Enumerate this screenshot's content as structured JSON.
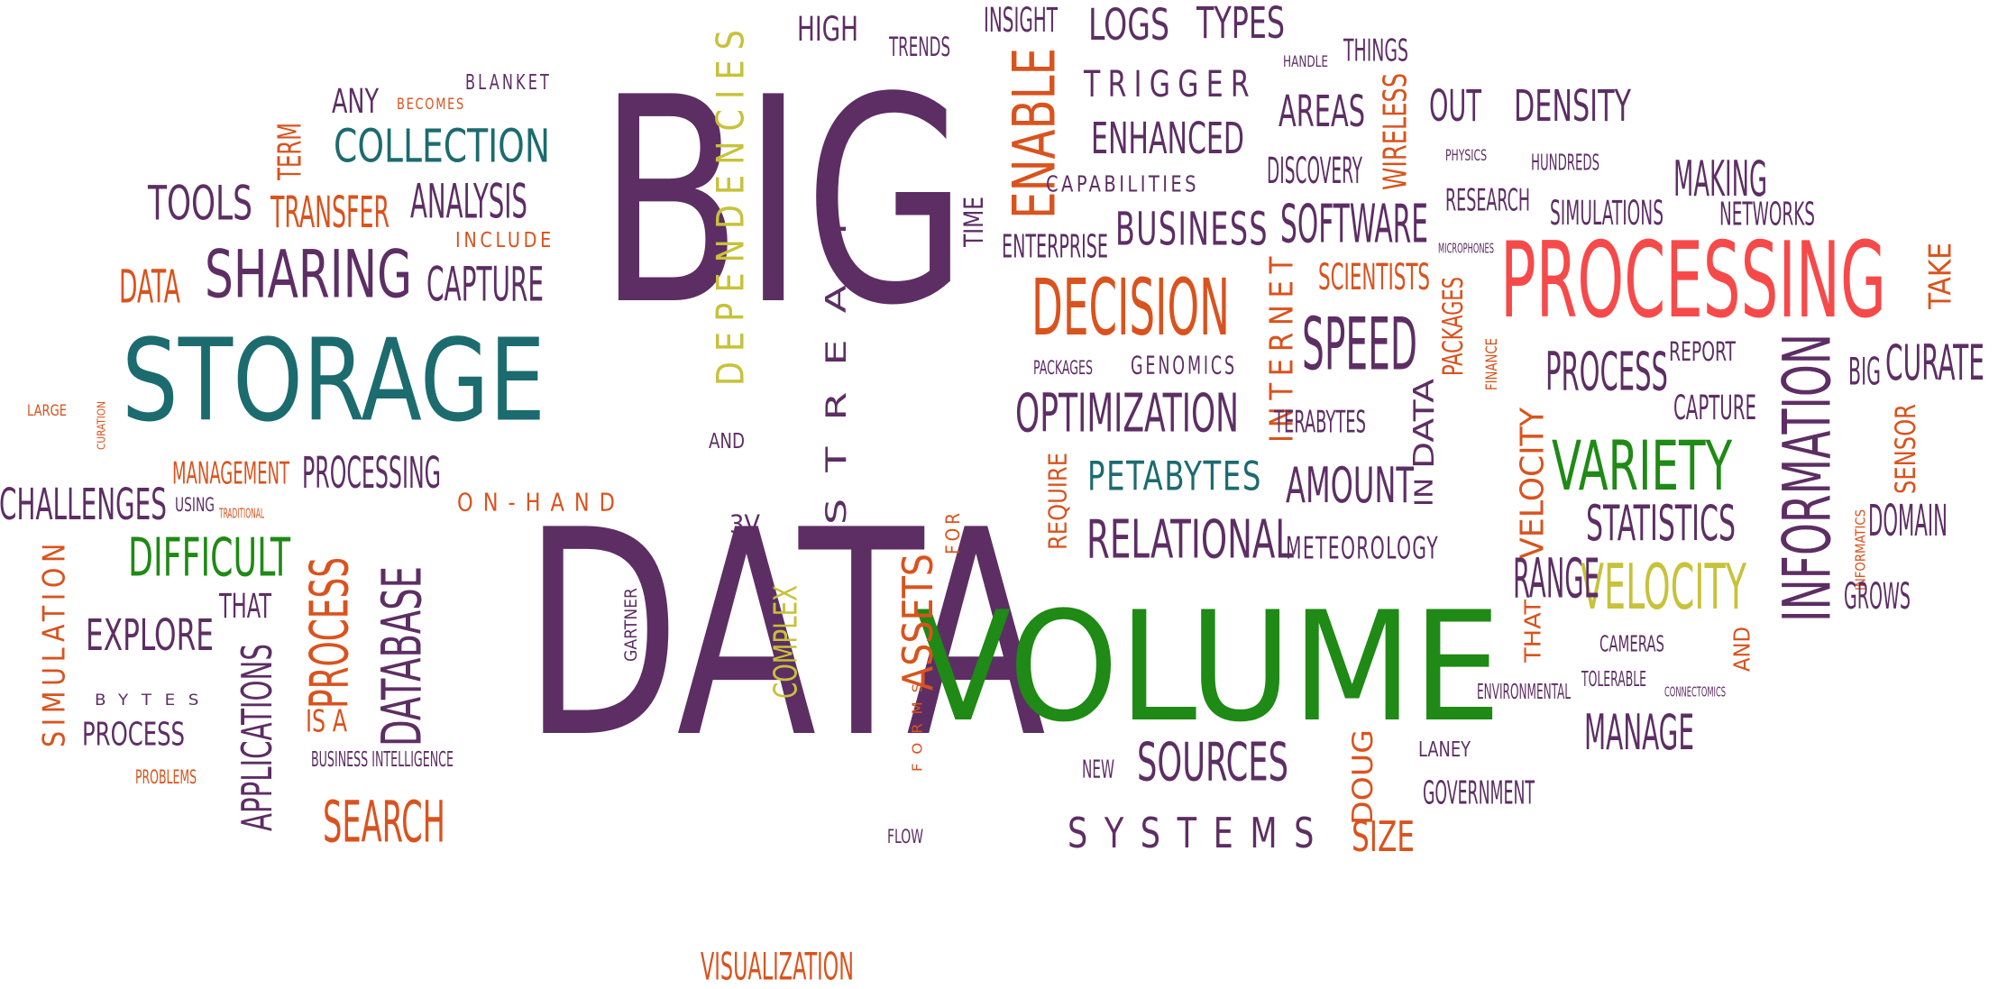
{
  "colors": {
    "purple": "#5d2e64",
    "teal": "#1c6b6f",
    "orange": "#d9531e",
    "red": "#f64a4a",
    "green": "#1f8a15",
    "olive": "#c7c23a",
    "background": "#ffffff"
  },
  "words": [
    {
      "text": "BIG",
      "color": "purple"
    },
    {
      "text": "DATA",
      "color": "purple"
    },
    {
      "text": "VOLUME",
      "color": "green"
    },
    {
      "text": "PROCESSING",
      "color": "red"
    },
    {
      "text": "STORAGE",
      "color": "teal"
    },
    {
      "text": "DECISION",
      "color": "orange"
    },
    {
      "text": "INFORMATION",
      "color": "purple"
    },
    {
      "text": "SHARING",
      "color": "purple"
    },
    {
      "text": "SPEED",
      "color": "purple"
    },
    {
      "text": "VARIETY",
      "color": "green"
    },
    {
      "text": "VELOCITY",
      "color": "olive"
    },
    {
      "text": "OPTIMIZATION",
      "color": "purple"
    },
    {
      "text": "RELATIONAL",
      "color": "purple"
    },
    {
      "text": "SOFTWARE",
      "color": "purple"
    },
    {
      "text": "SOURCES",
      "color": "purple"
    },
    {
      "text": "ENABLE",
      "color": "orange"
    },
    {
      "text": "DATABASE",
      "color": "purple"
    },
    {
      "text": "PROCESS",
      "color": "orange"
    },
    {
      "text": "DIFFICULT",
      "color": "green"
    },
    {
      "text": "APPLICATIONS",
      "color": "purple"
    },
    {
      "text": "CHALLENGES",
      "color": "purple"
    },
    {
      "text": "SEARCH",
      "color": "orange"
    },
    {
      "text": "DEPENDENCIES",
      "color": "olive"
    },
    {
      "text": "STREAM",
      "color": "purple"
    },
    {
      "text": "COLLECTION",
      "color": "teal"
    },
    {
      "text": "ANALYSIS",
      "color": "purple"
    },
    {
      "text": "TOOLS",
      "color": "purple"
    },
    {
      "text": "TRANSFER",
      "color": "orange"
    },
    {
      "text": "TERM",
      "color": "orange"
    },
    {
      "text": "DATA",
      "color": "orange"
    },
    {
      "text": "CAPTURE",
      "color": "purple"
    },
    {
      "text": "MANAGEMENT",
      "color": "orange"
    },
    {
      "text": "PROCESSING",
      "color": "purple"
    },
    {
      "text": "EXPLORE",
      "color": "purple"
    },
    {
      "text": "THAT",
      "color": "purple"
    },
    {
      "text": "SIMULATION",
      "color": "orange"
    },
    {
      "text": "PROCESS",
      "color": "purple"
    },
    {
      "text": "BYTES",
      "color": "purple"
    },
    {
      "text": "PROBLEMS",
      "color": "orange"
    },
    {
      "text": "IS A",
      "color": "orange"
    },
    {
      "text": "BUSINESS INTELLIGENCE",
      "color": "purple"
    },
    {
      "text": "USING",
      "color": "purple"
    },
    {
      "text": "TRADITIONAL",
      "color": "orange"
    },
    {
      "text": "LARGE",
      "color": "orange"
    },
    {
      "text": "CURATION",
      "color": "orange"
    },
    {
      "text": "ANY",
      "color": "purple"
    },
    {
      "text": "BECOMES",
      "color": "orange"
    },
    {
      "text": "BLANKET",
      "color": "purple"
    },
    {
      "text": "INCLUDE",
      "color": "orange"
    },
    {
      "text": "AND",
      "color": "purple"
    },
    {
      "text": "ON-HAND",
      "color": "orange"
    },
    {
      "text": "3V",
      "color": "purple"
    },
    {
      "text": "FOR",
      "color": "orange"
    },
    {
      "text": "GARTNER",
      "color": "purple"
    },
    {
      "text": "COMPLEX",
      "color": "olive"
    },
    {
      "text": "ASSETS",
      "color": "orange"
    },
    {
      "text": "FORMS",
      "color": "orange"
    },
    {
      "text": "FLOW",
      "color": "purple"
    },
    {
      "text": "VISUALIZATION",
      "color": "orange"
    },
    {
      "text": "HIGH",
      "color": "purple"
    },
    {
      "text": "TRENDS",
      "color": "purple"
    },
    {
      "text": "INSIGHT",
      "color": "purple"
    },
    {
      "text": "LOGS",
      "color": "purple"
    },
    {
      "text": "TYPES",
      "color": "purple"
    },
    {
      "text": "THINGS",
      "color": "purple"
    },
    {
      "text": "HANDLE",
      "color": "purple"
    },
    {
      "text": "TRIGGER",
      "color": "purple"
    },
    {
      "text": "AREAS",
      "color": "purple"
    },
    {
      "text": "WIRELESS",
      "color": "orange"
    },
    {
      "text": "OUT",
      "color": "purple"
    },
    {
      "text": "DENSITY",
      "color": "purple"
    },
    {
      "text": "ENHANCED",
      "color": "purple"
    },
    {
      "text": "DISCOVERY",
      "color": "purple"
    },
    {
      "text": "CAPABILITIES",
      "color": "purple"
    },
    {
      "text": "PHYSICS",
      "color": "purple"
    },
    {
      "text": "HUNDREDS",
      "color": "purple"
    },
    {
      "text": "MAKING",
      "color": "purple"
    },
    {
      "text": "RESEARCH",
      "color": "purple"
    },
    {
      "text": "SIMULATIONS",
      "color": "purple"
    },
    {
      "text": "NETWORKS",
      "color": "purple"
    },
    {
      "text": "TIME",
      "color": "purple"
    },
    {
      "text": "BUSINESS",
      "color": "purple"
    },
    {
      "text": "ENTERPRISE",
      "color": "purple"
    },
    {
      "text": "MICROPHONES",
      "color": "purple"
    },
    {
      "text": "INTERNET",
      "color": "orange"
    },
    {
      "text": "SCIENTISTS",
      "color": "orange"
    },
    {
      "text": "TAKE",
      "color": "orange"
    },
    {
      "text": "PACKAGES",
      "color": "purple"
    },
    {
      "text": "GENOMICS",
      "color": "purple"
    },
    {
      "text": "PACKAGES",
      "color": "orange"
    },
    {
      "text": "FINANCE",
      "color": "orange"
    },
    {
      "text": "REPORT",
      "color": "purple"
    },
    {
      "text": "BIG",
      "color": "purple"
    },
    {
      "text": "CURATE",
      "color": "purple"
    },
    {
      "text": "PROCESS",
      "color": "purple"
    },
    {
      "text": "CAPTURE",
      "color": "purple"
    },
    {
      "text": "SENSOR",
      "color": "orange"
    },
    {
      "text": "DOMAIN",
      "color": "purple"
    },
    {
      "text": "TERABYTES",
      "color": "purple"
    },
    {
      "text": "DATA",
      "color": "purple"
    },
    {
      "text": "IN",
      "color": "purple"
    },
    {
      "text": "PETABYTES",
      "color": "teal"
    },
    {
      "text": "REQUIRE",
      "color": "orange"
    },
    {
      "text": "AMOUNT",
      "color": "purple"
    },
    {
      "text": "VELOCITY",
      "color": "orange"
    },
    {
      "text": "STATISTICS",
      "color": "purple"
    },
    {
      "text": "INFORMATICS",
      "color": "orange"
    },
    {
      "text": "METEOROLOGY",
      "color": "purple"
    },
    {
      "text": "RANGE",
      "color": "purple"
    },
    {
      "text": "GROWS",
      "color": "purple"
    },
    {
      "text": "THAT",
      "color": "orange"
    },
    {
      "text": "CAMERAS",
      "color": "purple"
    },
    {
      "text": "AND",
      "color": "orange"
    },
    {
      "text": "TOLERABLE",
      "color": "purple"
    },
    {
      "text": "ENVIRONMENTAL",
      "color": "purple"
    },
    {
      "text": "CONNECTOMICS",
      "color": "purple"
    },
    {
      "text": "MANAGE",
      "color": "purple"
    },
    {
      "text": "NEW",
      "color": "purple"
    },
    {
      "text": "DOUG",
      "color": "orange"
    },
    {
      "text": "LANEY",
      "color": "purple"
    },
    {
      "text": "GOVERNMENT",
      "color": "purple"
    },
    {
      "text": "SYSTEMS",
      "color": "purple"
    },
    {
      "text": "SIZE",
      "color": "orange"
    }
  ]
}
